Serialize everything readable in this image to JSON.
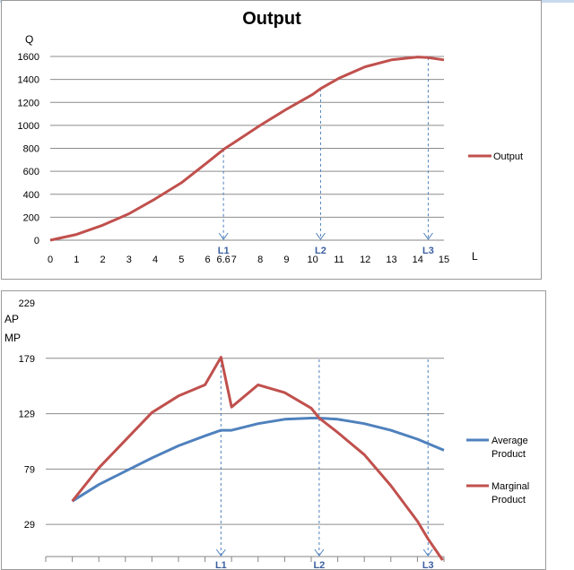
{
  "chart_data": [
    {
      "type": "line",
      "title": "Output",
      "ylabel": "Q",
      "xlabel": "L",
      "ylim": [
        0,
        1600
      ],
      "xlim": [
        0,
        15
      ],
      "yticks": [
        0,
        200,
        400,
        600,
        800,
        1000,
        1200,
        1400,
        1600
      ],
      "xticks": [
        0,
        1,
        2,
        3,
        4,
        5,
        6,
        6.6,
        7,
        8,
        9,
        10,
        11,
        12,
        13,
        14,
        15
      ],
      "xtick_labels": [
        "0",
        "1",
        "2",
        "3",
        "4",
        "5",
        "6",
        "6.6",
        "7",
        "8",
        "9",
        "10",
        "11",
        "12",
        "13",
        "14",
        "15"
      ],
      "grid": "horizontal",
      "legend": "right",
      "series": [
        {
          "name": "Output",
          "color": "#c0504d",
          "x": [
            0,
            1,
            2,
            3,
            4,
            5,
            6,
            6.6,
            7,
            8,
            9,
            10,
            10.3,
            11,
            12,
            13,
            14,
            14.4,
            15
          ],
          "y": [
            0,
            50,
            130,
            230,
            360,
            500,
            680,
            790,
            850,
            1000,
            1140,
            1270,
            1320,
            1410,
            1510,
            1570,
            1595,
            1590,
            1570
          ]
        }
      ],
      "markers": [
        {
          "label": "L1",
          "x": 6.6,
          "y": 790
        },
        {
          "label": "L2",
          "x": 10.3,
          "y": 1320
        },
        {
          "label": "L3",
          "x": 14.4,
          "y": 1590
        }
      ]
    },
    {
      "type": "line",
      "ylabel_lines": [
        "AP",
        "MP"
      ],
      "ylim": [
        0,
        229
      ],
      "yticks": [
        29,
        79,
        129,
        179,
        229
      ],
      "xlim": [
        0,
        15
      ],
      "grid": "horizontal",
      "legend": "right",
      "series": [
        {
          "name": "Average Product",
          "color": "#4f81bd",
          "x": [
            1,
            2,
            3,
            4,
            5,
            6,
            6.6,
            7,
            8,
            9,
            10,
            10.3,
            11,
            12,
            13,
            14,
            15
          ],
          "y": [
            50,
            65,
            77,
            89,
            100,
            109,
            114,
            114,
            120,
            124,
            125,
            125,
            124,
            120,
            114,
            106,
            96
          ]
        },
        {
          "name": "Marginal Product",
          "color": "#c0504d",
          "x": [
            1,
            2,
            3,
            4,
            5,
            6,
            6.6,
            7,
            8,
            9,
            10,
            10.3,
            11,
            12,
            13,
            14,
            14.4,
            15
          ],
          "y": [
            50,
            80,
            105,
            130,
            145,
            155,
            180,
            135,
            155,
            148,
            134,
            125,
            112,
            92,
            64,
            32,
            16,
            -5
          ]
        }
      ],
      "markers": [
        {
          "label": "L1",
          "x": 6.6
        },
        {
          "label": "L2",
          "x": 10.3
        },
        {
          "label": "L3",
          "x": 14.4
        }
      ]
    }
  ]
}
